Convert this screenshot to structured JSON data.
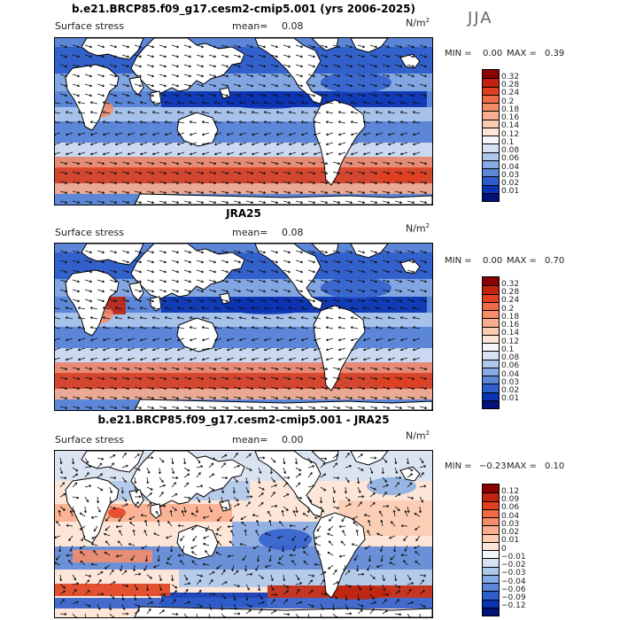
{
  "season": "JJA",
  "panels": [
    {
      "title": "b.e21.BRCP85.f09_g17.cesm2-cmip5.001 (yrs 2006-2025)",
      "variable_label": "Surface stress",
      "mean_label": "mean=",
      "mean_value": "0.08",
      "units_base": "N/m",
      "units_exp": "2",
      "min_label": "MIN =",
      "min_value": "0.00",
      "max_label": "MAX =",
      "max_value": "0.39",
      "colorbar_levels": [
        "0.32",
        "0.28",
        "0.24",
        "0.2",
        "0.18",
        "0.16",
        "0.14",
        "0.12",
        "0.1",
        "0.08",
        "0.06",
        "0.04",
        "0.03",
        "0.02",
        "0.01"
      ],
      "colorbar_colors": [
        "#8b0000",
        "#c0230f",
        "#e0401f",
        "#ef6a45",
        "#f58c6a",
        "#f9ad8e",
        "#fbcbb2",
        "#fde6d8",
        "#f4f6fb",
        "#d6e2f4",
        "#aec8ec",
        "#86aae3",
        "#5c86d8",
        "#2f5dcb",
        "#0a33b4",
        "#00127a"
      ]
    },
    {
      "title": "JRA25",
      "variable_label": "Surface stress",
      "mean_label": "mean=",
      "mean_value": "0.08",
      "units_base": "N/m",
      "units_exp": "2",
      "min_label": "MIN =",
      "min_value": "0.00",
      "max_label": "MAX =",
      "max_value": "0.70",
      "colorbar_levels": [
        "0.32",
        "0.28",
        "0.24",
        "0.2",
        "0.18",
        "0.16",
        "0.14",
        "0.12",
        "0.1",
        "0.08",
        "0.06",
        "0.04",
        "0.03",
        "0.02",
        "0.01"
      ],
      "colorbar_colors": [
        "#8b0000",
        "#c0230f",
        "#e0401f",
        "#ef6a45",
        "#f58c6a",
        "#f9ad8e",
        "#fbcbb2",
        "#fde6d8",
        "#f4f6fb",
        "#d6e2f4",
        "#aec8ec",
        "#86aae3",
        "#5c86d8",
        "#2f5dcb",
        "#0a33b4",
        "#00127a"
      ]
    },
    {
      "title": "b.e21.BRCP85.f09_g17.cesm2-cmip5.001 - JRA25",
      "variable_label": "Surface stress",
      "mean_label": "mean=",
      "mean_value": "0.00",
      "units_base": "N/m",
      "units_exp": "2",
      "min_label": "MIN =",
      "min_value": "−0.23",
      "max_label": "MAX =",
      "max_value": "0.10",
      "colorbar_levels": [
        "0.12",
        "0.09",
        "0.06",
        "0.04",
        "0.03",
        "0.02",
        "0.01",
        "0",
        "−0.01",
        "−0.02",
        "−0.03",
        "−0.04",
        "−0.06",
        "−0.09",
        "−0.12"
      ],
      "colorbar_colors": [
        "#8b0000",
        "#c0230f",
        "#e0401f",
        "#ef6a45",
        "#f58c6a",
        "#f9ad8e",
        "#fbcbb2",
        "#fde6d8",
        "#f4f6fb",
        "#d6e2f4",
        "#aec8ec",
        "#86aae3",
        "#5c86d8",
        "#2f5dcb",
        "#0a33b4",
        "#00127a"
      ]
    }
  ]
}
